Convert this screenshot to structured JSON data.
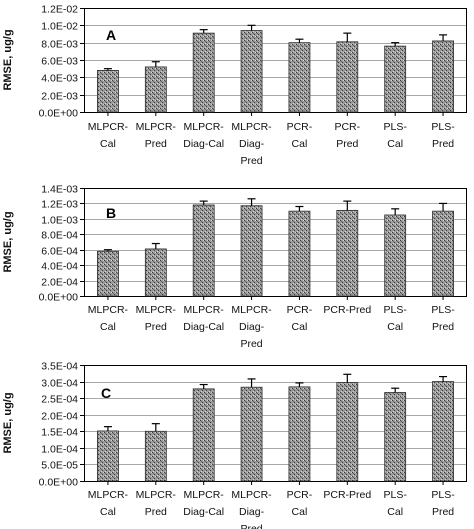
{
  "chart_data": [
    {
      "type": "bar",
      "panel_label": "A",
      "ylabel": "RMSE, ug/g",
      "ylim": [
        0,
        0.012
      ],
      "yticks": [
        "0.0E+00",
        "2.0E-03",
        "4.0E-03",
        "6.0E-03",
        "8.0E-03",
        "1.0E-02",
        "1.2E-02"
      ],
      "categories": [
        [
          "MLPCR-",
          "Cal"
        ],
        [
          "MLPCR-",
          "Pred"
        ],
        [
          "MLPCR-",
          "Diag-Cal"
        ],
        [
          "MLPCR-",
          "Diag-",
          "Pred"
        ],
        [
          "PCR-",
          "Cal"
        ],
        [
          "PCR-",
          "Pred"
        ],
        [
          "PLS-",
          "Cal"
        ],
        [
          "PLS-",
          "Pred"
        ]
      ],
      "values": [
        0.0048,
        0.0052,
        0.0091,
        0.0094,
        0.008,
        0.0081,
        0.0076,
        0.0082
      ],
      "errors": [
        0.0002,
        0.0006,
        0.0004,
        0.0006,
        0.0004,
        0.001,
        0.0004,
        0.0007
      ],
      "grid": true
    },
    {
      "type": "bar",
      "panel_label": "B",
      "ylabel": "RMSE, ug/g",
      "ylim": [
        0,
        0.0014
      ],
      "yticks": [
        "0.0E+00",
        "2.0E-04",
        "4.0E-04",
        "6.0E-04",
        "8.0E-04",
        "1.0E-03",
        "1.2E-03",
        "1.4E-03"
      ],
      "categories": [
        [
          "MLPCR-",
          "Cal"
        ],
        [
          "MLPCR-",
          "Pred"
        ],
        [
          "MLPCR-",
          "Diag-Cal"
        ],
        [
          "MLPCR-",
          "Diag-",
          "Pred"
        ],
        [
          "PCR-",
          "Cal"
        ],
        [
          "PCR-Pred"
        ],
        [
          "PLS-",
          "Cal"
        ],
        [
          "PLS-",
          "Pred"
        ]
      ],
      "values": [
        0.00058,
        0.00061,
        0.00118,
        0.00117,
        0.0011,
        0.00111,
        0.00105,
        0.0011
      ],
      "errors": [
        2e-05,
        7e-05,
        5e-05,
        9e-05,
        6e-05,
        0.00012,
        8e-05,
        0.0001
      ],
      "grid": true
    },
    {
      "type": "bar",
      "panel_label": "C",
      "ylabel": "RMSE, ug/g",
      "ylim": [
        0,
        0.00035
      ],
      "yticks": [
        "0.0E+00",
        "5.0E-05",
        "1.0E-04",
        "1.5E-04",
        "2.0E-04",
        "2.5E-04",
        "3.0E-04",
        "3.5E-04"
      ],
      "categories": [
        [
          "MLPCR-",
          "Cal"
        ],
        [
          "MLPCR-",
          "Pred"
        ],
        [
          "MLPCR-",
          "Diag-Cal"
        ],
        [
          "MLPCR-",
          "Diag-",
          "Pred"
        ],
        [
          "PCR-",
          "Cal"
        ],
        [
          "PCR-Pred"
        ],
        [
          "PLS-",
          "Cal"
        ],
        [
          "PLS-",
          "Pred"
        ]
      ],
      "values": [
        0.000151,
        0.00015,
        0.000278,
        0.000283,
        0.000284,
        0.000297,
        0.000267,
        0.0003
      ],
      "errors": [
        1.3e-05,
        2.3e-05,
        1.3e-05,
        2.5e-05,
        1.2e-05,
        2.5e-05,
        1.3e-05,
        1.5e-05
      ],
      "grid": true
    }
  ]
}
